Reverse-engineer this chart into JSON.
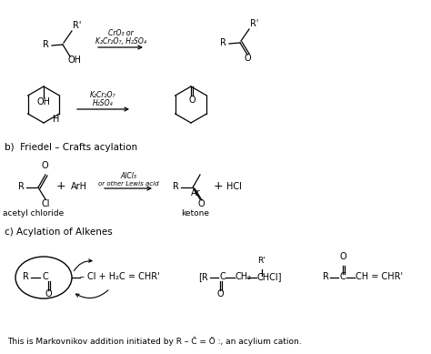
{
  "bg_color": "#ffffff",
  "fig_width": 4.74,
  "fig_height": 3.89,
  "dpi": 100,
  "section_b_label": "b)  Friedel – Crafts acylation",
  "section_c_label": "c) Acylation of Alkenes",
  "bottom_text": "This is Markovnikov addition initiated by R – Č = Ö :, an acylium cation.",
  "row1_reagent_top": "CrO₃ or",
  "row1_reagent_bot": "K₂Cr₂O₇, H₂SO₄",
  "row2_reagent_top": "K₂Cr₂O₇",
  "row2_reagent_bot": "H₂SO₄",
  "row3_reagent_top": "AlCl₃",
  "row3_reagent_bot": "or other Lewis acid",
  "acetyl_chloride_label": "acetyl chloride",
  "ketone_label": "ketone"
}
